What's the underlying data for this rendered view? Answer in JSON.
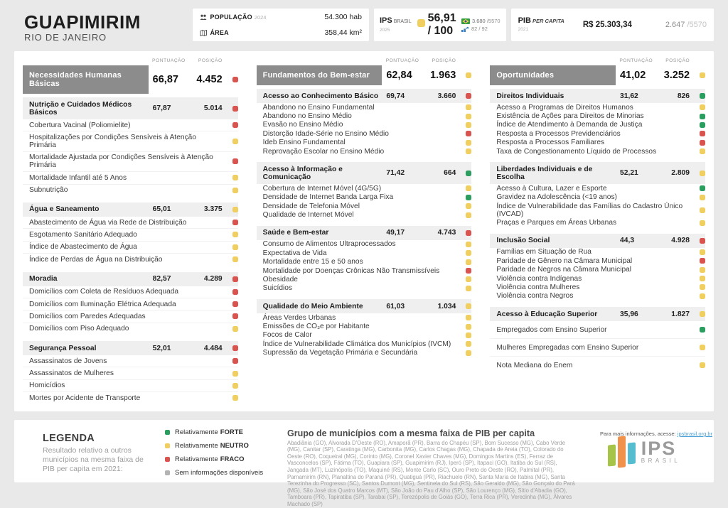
{
  "colors": {
    "forte": "#2b9e5f",
    "neutro": "#f0cf60",
    "fraco": "#d9534f",
    "sem_info": "#b3b3b3"
  },
  "header": {
    "municipality": "GUAPIMIRIM",
    "state": "RIO DE JANEIRO",
    "population_label": "POPULAÇÃO",
    "population_year": "2024",
    "population_value": "54.300 hab",
    "area_label": "ÁREA",
    "area_value": "358,44 km²",
    "ips_label": "IPS",
    "ips_sublabel": "BRASIL",
    "ips_year": "2025",
    "ips_score": "56,91 / 100",
    "ips_score_status": "neutro",
    "ips_rank_brazil": "3.680",
    "ips_rank_brazil_total": "/5570",
    "ips_rank_state": "82 / 92",
    "pib_label": "PIB",
    "pib_sublabel": "PER CAPITA",
    "pib_year": "2021",
    "pib_value": "R$ 25.303,34",
    "pib_rank": "2.647",
    "pib_rank_total": "/5570"
  },
  "table": {
    "score_label": "PONTUAÇÃO",
    "rank_label": "POSIÇÃO",
    "columns": [
      {
        "name": "Necessidades Humanas Básicas",
        "score": "66,87",
        "rank": "4.452",
        "status": "fraco",
        "sections": [
          {
            "name": "Nutrição e Cuidados Médicos Básicos",
            "score": "67,87",
            "rank": "5.014",
            "status": "fraco",
            "indicators": [
              {
                "label": "Cobertura Vacinal (Poliomielite)",
                "status": "fraco"
              },
              {
                "label": "Hospitalizações por Condições Sensíveis à Atenção Primária",
                "status": "neutro"
              },
              {
                "label": "Mortalidade Ajustada por Condições Sensíveis à Atenção Primária",
                "status": "fraco"
              },
              {
                "label": "Mortalidade Infantil até 5 Anos",
                "status": "neutro"
              },
              {
                "label": "Subnutrição",
                "status": "neutro"
              }
            ]
          },
          {
            "name": "Água e Saneamento",
            "score": "65,01",
            "rank": "3.375",
            "status": "neutro",
            "indicators": [
              {
                "label": "Abastecimento de Água via Rede de Distribuição",
                "status": "fraco"
              },
              {
                "label": "Esgotamento Sanitário Adequado",
                "status": "neutro"
              },
              {
                "label": "Índice de Abastecimento de Água",
                "status": "neutro"
              },
              {
                "label": "Índice de Perdas de Água na Distribuição",
                "status": "neutro"
              }
            ]
          },
          {
            "name": "Moradia",
            "score": "82,57",
            "rank": "4.289",
            "status": "fraco",
            "indicators": [
              {
                "label": "Domicílios com Coleta de Resíduos Adequada",
                "status": "fraco"
              },
              {
                "label": "Domicílios com Iluminação Elétrica Adequada",
                "status": "fraco"
              },
              {
                "label": "Domicílios com Paredes Adequadas",
                "status": "fraco"
              },
              {
                "label": "Domicílios com Piso Adequado",
                "status": "neutro"
              }
            ]
          },
          {
            "name": "Segurança Pessoal",
            "score": "52,01",
            "rank": "4.484",
            "status": "fraco",
            "indicators": [
              {
                "label": "Assassinatos de Jovens",
                "status": "fraco"
              },
              {
                "label": "Assassinatos de Mulheres",
                "status": "neutro"
              },
              {
                "label": "Homicídios",
                "status": "neutro"
              },
              {
                "label": "Mortes por Acidente de Transporte",
                "status": "neutro"
              }
            ]
          }
        ]
      },
      {
        "name": "Fundamentos do Bem-estar",
        "score": "62,84",
        "rank": "1.963",
        "status": "neutro",
        "sections": [
          {
            "name": "Acesso ao Conhecimento Básico",
            "score": "69,74",
            "rank": "3.660",
            "status": "fraco",
            "indicators": [
              {
                "label": "Abandono no Ensino Fundamental",
                "status": "neutro"
              },
              {
                "label": "Abandono no Ensino Médio",
                "status": "neutro"
              },
              {
                "label": "Evasão no Ensino Médio",
                "status": "neutro"
              },
              {
                "label": "Distorção Idade-Série no Ensino Médio",
                "status": "fraco"
              },
              {
                "label": "Ideb Ensino Fundamental",
                "status": "neutro"
              },
              {
                "label": "Reprovação Escolar no Ensino Médio",
                "status": "neutro"
              }
            ]
          },
          {
            "name": "Acesso à Informação e Comunicação",
            "score": "71,42",
            "rank": "664",
            "status": "forte",
            "indicators": [
              {
                "label": "Cobertura de Internet Móvel (4G/5G)",
                "status": "neutro"
              },
              {
                "label": "Densidade de Internet Banda Larga Fixa",
                "status": "forte"
              },
              {
                "label": "Densidade de Telefonia Móvel",
                "status": "neutro"
              },
              {
                "label": "Qualidade de Internet Móvel",
                "status": "neutro"
              }
            ]
          },
          {
            "name": "Saúde e Bem-estar",
            "score": "49,17",
            "rank": "4.743",
            "status": "fraco",
            "indicators": [
              {
                "label": "Consumo de Alimentos Ultraprocessados",
                "status": "neutro"
              },
              {
                "label": "Expectativa de Vida",
                "status": "neutro"
              },
              {
                "label": "Mortalidade entre 15 e 50 anos",
                "status": "neutro"
              },
              {
                "label": "Mortalidade por Doenças Crônicas Não Transmissíveis",
                "status": "fraco"
              },
              {
                "label": "Obesidade",
                "status": "neutro"
              },
              {
                "label": "Suicídios",
                "status": "neutro"
              }
            ]
          },
          {
            "name": "Qualidade do Meio Ambiente",
            "score": "61,03",
            "rank": "1.034",
            "status": "neutro",
            "indicators": [
              {
                "label": "Áreas Verdes Urbanas",
                "status": "neutro"
              },
              {
                "label": "Emissões de CO₂e por Habitante",
                "status": "neutro"
              },
              {
                "label": "Focos de Calor",
                "status": "neutro"
              },
              {
                "label": "Índice de Vulnerabilidade Climática dos Municípios (IVCM)",
                "status": "neutro"
              },
              {
                "label": "Supressão da Vegetação Primária e Secundária",
                "status": "neutro"
              }
            ]
          }
        ]
      },
      {
        "name": "Oportunidades",
        "score": "41,02",
        "rank": "3.252",
        "status": "neutro",
        "sections": [
          {
            "name": "Direitos Individuais",
            "score": "31,62",
            "rank": "826",
            "status": "forte",
            "indicators": [
              {
                "label": "Acesso a Programas de Direitos Humanos",
                "status": "neutro"
              },
              {
                "label": "Existência de Ações para Direitos de Minorias",
                "status": "forte"
              },
              {
                "label": "Índice de Atendimento à Demanda de Justiça",
                "status": "forte"
              },
              {
                "label": "Resposta a Processos Previdenciários",
                "status": "fraco"
              },
              {
                "label": "Resposta a Processos Familiares",
                "status": "fraco"
              },
              {
                "label": "Taxa de Congestionamento Líquido de Processos",
                "status": "neutro"
              }
            ]
          },
          {
            "name": "Liberdades Individuais e de Escolha",
            "score": "52,21",
            "rank": "2.809",
            "status": "neutro",
            "indicators": [
              {
                "label": "Acesso à Cultura, Lazer e Esporte",
                "status": "forte"
              },
              {
                "label": "Gravidez na Adolescência (<19 anos)",
                "status": "neutro"
              },
              {
                "label": "Índice de Vulnerabilidade das Famílias do Cadastro Único (IVCAD)",
                "status": "neutro"
              },
              {
                "label": "Praças e Parques em Áreas Urbanas",
                "status": "neutro"
              }
            ]
          },
          {
            "name": "Inclusão Social",
            "score": "44,3",
            "rank": "4.928",
            "status": "fraco",
            "indicators": [
              {
                "label": "Famílias em Situação de Rua",
                "status": "neutro"
              },
              {
                "label": "Paridade de Gênero na Câmara Municipal",
                "status": "fraco"
              },
              {
                "label": "Paridade de Negros na Câmara Municipal",
                "status": "neutro"
              },
              {
                "label": "Violência contra Indígenas",
                "status": "neutro"
              },
              {
                "label": "Violência contra Mulheres",
                "status": "neutro"
              },
              {
                "label": "Violência contra Negros",
                "status": "neutro"
              }
            ]
          },
          {
            "name": "Acesso à Educação Superior",
            "score": "35,96",
            "rank": "1.827",
            "status": "neutro",
            "indicators": [
              {
                "label": "Empregados com Ensino Superior",
                "status": "forte"
              },
              {
                "label": "Mulheres Empregadas com Ensino Superior",
                "status": "neutro"
              },
              {
                "label": "Nota Mediana do Enem",
                "status": "neutro"
              }
            ]
          }
        ]
      }
    ]
  },
  "legend": {
    "title": "LEGENDA",
    "description": "Resultado relativo a outros municípios na mesma faixa de PIB per capita em 2021:",
    "items": [
      {
        "prefix": "Relativamente",
        "strong": "FORTE",
        "status": "forte"
      },
      {
        "prefix": "Relativamente",
        "strong": "NEUTRO",
        "status": "neutro"
      },
      {
        "prefix": "Relativamente",
        "strong": "FRACO",
        "status": "fraco"
      },
      {
        "prefix": "Sem informações disponíveis",
        "strong": "",
        "status": "sem_info"
      }
    ]
  },
  "group": {
    "title": "Grupo de municípios com a mesma faixa de PIB per capita",
    "text": "Abadiânia (GO), Alvorada D'Oeste (RO), Amaporã (PR), Barra do Chapéu (SP), Bom Sucesso (MG), Cabo Verde (MG), Canitar (SP), Caratinga (MG), Carbonita (MG), Carlos Chagas (MG), Chapada de Areia (TO), Colorado do Oeste (RO), Coqueiral (MG), Corinto (MG), Coronel Xavier Chaves (MG), Domingos Martins (ES), Ferraz de Vasconcelos (SP), Fátima (TO), Guapiara (SP), Guapimirim (RJ), Iperó (SP), Itapaci (GO), Itatiba do Sul (RS), Jangada (MT), Luzinópolis (TO), Maquiné (RS), Monte Carlo (SC), Ouro Preto do Oeste (RO), Palmital (PR), Parnamirim (RN), Planaltina do Paraná (PR), Quatiguá (PR), Riachuelo (RN), Santa Maria de Itabira (MG), Santa Terezinha do Progresso (SC), Santos Dumont (MG), Sentinela do Sul (RS), São Geraldo (MG), São Gonçalo do Pará (MG), São José dos Quatro Marcos (MT), São João do Pau d'Alho (SP), São Lourenço (MG), Sítio d'Abadia (GO), Tamboara (PR), Tapiratiba (SP), Tarabai (SP), Terezópolis de Goiás (GO), Terra Rica (PR), Veredinha (MG), Álvares Machado (SP)"
  },
  "logo": {
    "text": "IPS",
    "subtext": "BRASIL"
  },
  "footer": {
    "text": "Para mais informações, acesse:",
    "link": "ipsbrasil.org.br"
  }
}
